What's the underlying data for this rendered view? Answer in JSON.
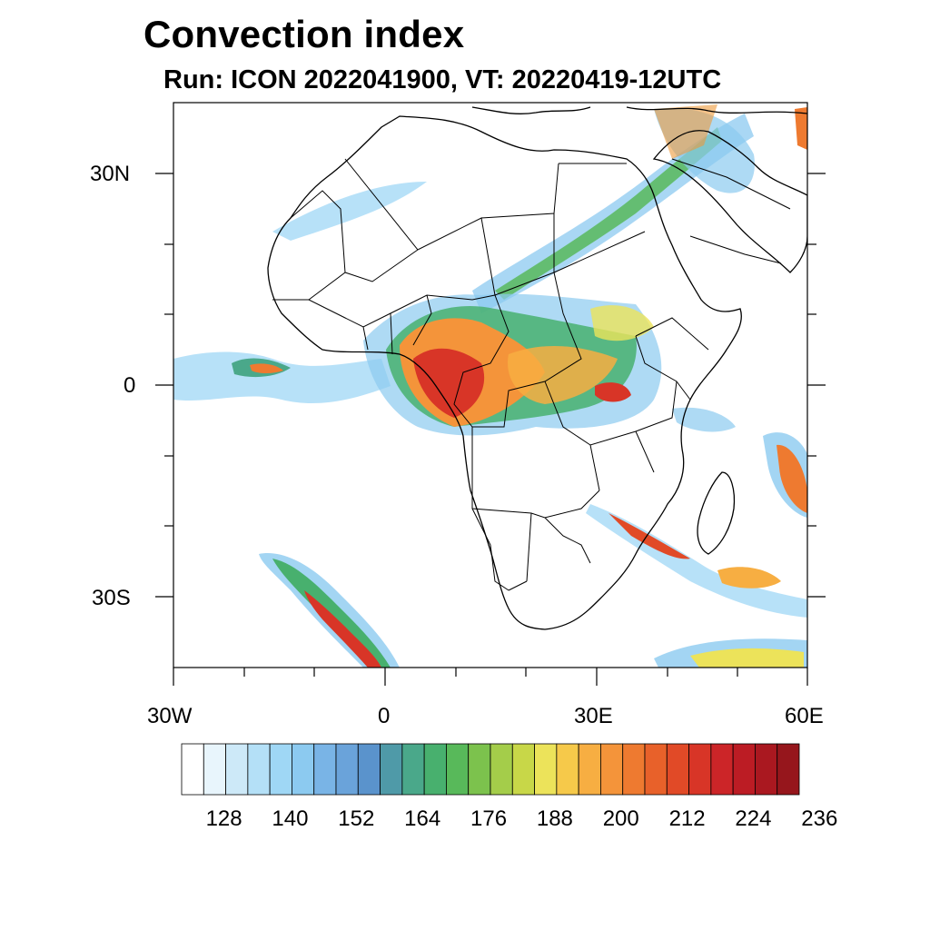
{
  "title": "Convection index",
  "subtitle": "Run: ICON 2022041900,  VT: 20220419-12UTC",
  "axes": {
    "lat_labels": [
      "30N",
      "0",
      "30S"
    ],
    "lon_labels": [
      "30W",
      "0",
      "30E",
      "60E"
    ]
  },
  "colorbar": {
    "labels": [
      "128",
      "140",
      "152",
      "164",
      "176",
      "188",
      "200",
      "212",
      "224",
      "236"
    ],
    "colors": [
      "#ffffff",
      "#e8f5fc",
      "#cde9f8",
      "#b4e0f7",
      "#9fd7f5",
      "#8ccaf0",
      "#79b4e6",
      "#6aa3da",
      "#5a93cc",
      "#4f9aa8",
      "#4aa88a",
      "#48b06e",
      "#58b95a",
      "#7cc24d",
      "#a4cd4a",
      "#c8d748",
      "#ece35a",
      "#f6c94a",
      "#f7ae42",
      "#f4943a",
      "#ee7a30",
      "#e8612a",
      "#e14a27",
      "#d83527",
      "#cc2528",
      "#bc1c24",
      "#aa1820",
      "#96161c"
    ]
  },
  "chart_data": {
    "type": "heatmap",
    "title": "Convection index",
    "subtitle": "Run: ICON 2022041900,  VT: 20220419-12UTC",
    "lon_range": [
      -30,
      60
    ],
    "lat_range": [
      -40,
      40
    ],
    "lat_ticks": [
      30,
      0,
      -30
    ],
    "lon_ticks": [
      -30,
      0,
      30,
      60
    ],
    "colorbar_levels": [
      128,
      140,
      152,
      164,
      176,
      188,
      200,
      212,
      224,
      236
    ]
  }
}
